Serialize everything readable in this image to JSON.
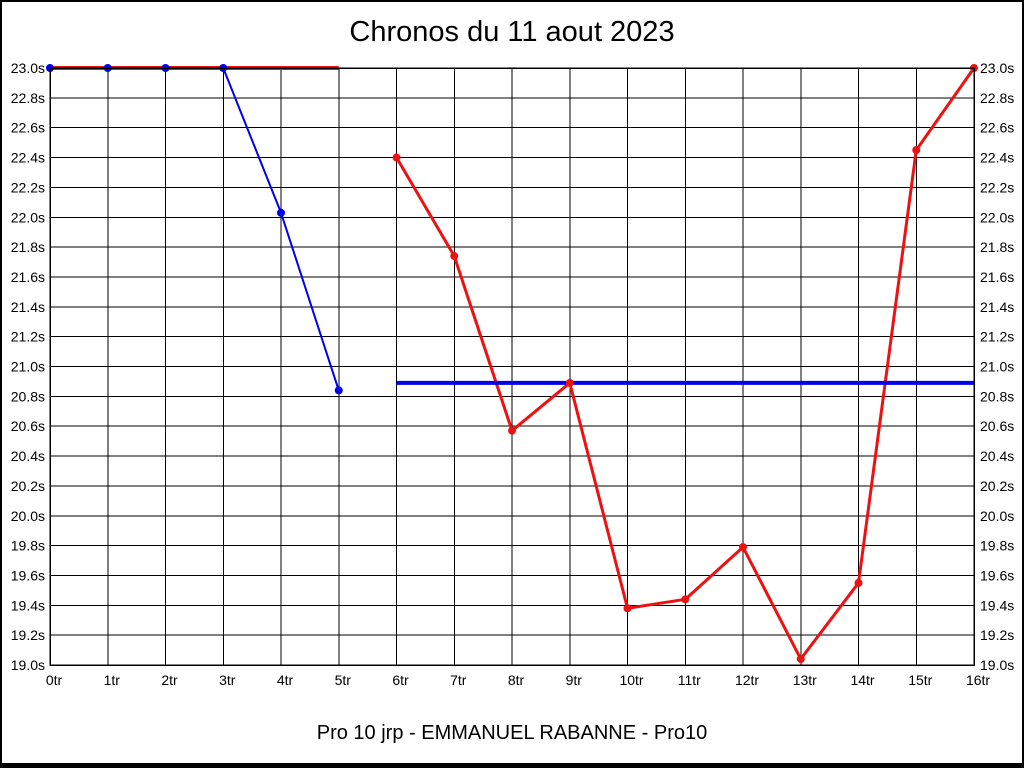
{
  "page": {
    "title": "Chronos du 11 aout 2023",
    "footer": "Pro 10 jrp - EMMANUEL RABANNE - Pro10"
  },
  "colors": {
    "red_series": "#ee1111",
    "blue_series": "#0000ee",
    "grid": "#000000",
    "background": "#ffffff",
    "text": "#000000"
  },
  "chart_data": {
    "type": "line",
    "title": "Chronos du 11 aout 2023",
    "xlabel": "",
    "ylabel": "",
    "x_unit": "tr",
    "y_unit": "s",
    "xlim": [
      0,
      16
    ],
    "ylim": [
      19.0,
      23.0
    ],
    "y_step": 0.2,
    "grid": true,
    "legend": "none",
    "x_ticks": [
      "0tr",
      "1tr",
      "2tr",
      "3tr",
      "4tr",
      "5tr",
      "6tr",
      "7tr",
      "8tr",
      "9tr",
      "10tr",
      "11tr",
      "12tr",
      "13tr",
      "14tr",
      "15tr",
      "16tr"
    ],
    "y_ticks_top_to_bottom": [
      "23.0s",
      "22.8s",
      "22.6s",
      "22.4s",
      "22.2s",
      "22.0s",
      "21.8s",
      "21.6s",
      "21.4s",
      "21.2s",
      "21.0s",
      "20.8s",
      "20.6s",
      "20.4s",
      "20.2s",
      "20.0s",
      "19.8s",
      "19.6s",
      "19.4s",
      "19.2s",
      "19.0s"
    ],
    "series": [
      {
        "name": "red-start-flat",
        "color_key": "red_series",
        "line_width": 4,
        "markers": false,
        "points": [
          [
            0,
            23.0
          ],
          [
            1,
            23.0
          ],
          [
            2,
            23.0
          ],
          [
            3,
            23.0
          ],
          [
            4,
            23.0
          ],
          [
            5,
            23.0
          ]
        ]
      },
      {
        "name": "blue-chronos",
        "color_key": "blue_series",
        "line_width": 2,
        "markers": true,
        "marker_radius": 4,
        "points": [
          [
            0,
            23.0
          ],
          [
            1,
            23.0
          ],
          [
            2,
            23.0
          ],
          [
            3,
            23.0
          ],
          [
            4,
            22.03
          ],
          [
            5,
            20.84
          ]
        ]
      },
      {
        "name": "red-chronos",
        "color_key": "red_series",
        "line_width": 3,
        "markers": true,
        "marker_radius": 4,
        "points": [
          [
            6,
            22.4
          ],
          [
            7,
            21.74
          ],
          [
            8,
            20.57
          ],
          [
            9,
            20.89
          ],
          [
            10,
            19.38
          ],
          [
            11,
            19.44
          ],
          [
            12,
            19.79
          ],
          [
            13,
            19.04
          ],
          [
            14,
            19.55
          ],
          [
            15,
            22.45
          ],
          [
            16,
            23.0
          ]
        ]
      },
      {
        "name": "blue-average-line",
        "color_key": "blue_series",
        "line_width": 4,
        "markers": false,
        "points": [
          [
            6,
            20.89
          ],
          [
            16,
            20.89
          ]
        ]
      }
    ]
  }
}
